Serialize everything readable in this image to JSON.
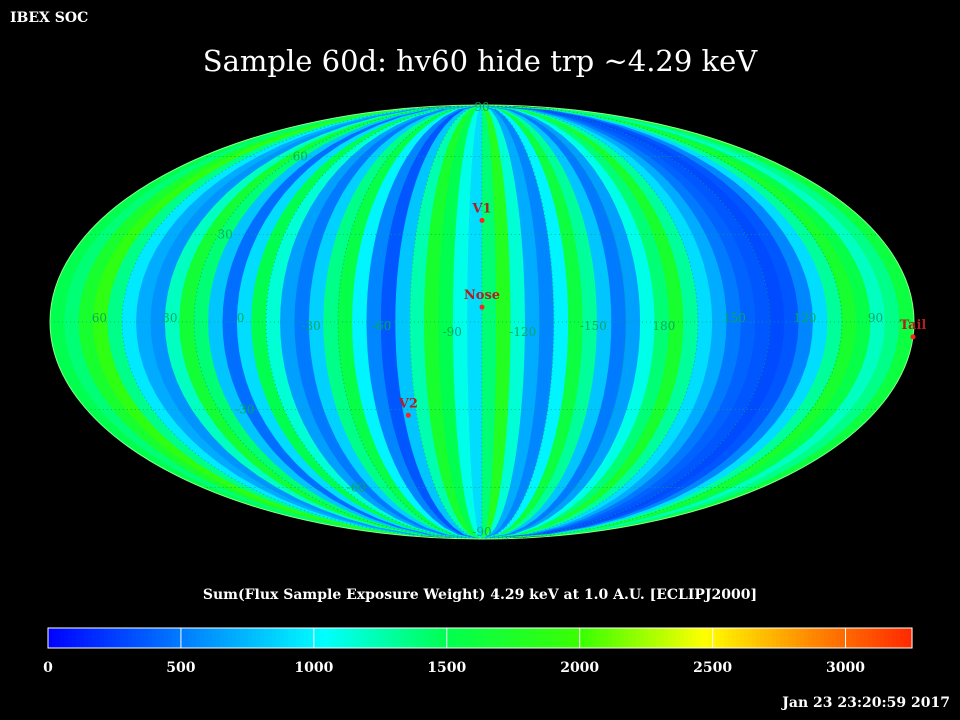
{
  "header": {
    "source_label": "IBEX SOC",
    "title": "Sample 60d: hv60 hide trp ~4.29 keV"
  },
  "chart_data": {
    "type": "heatmap",
    "projection": "mollweide",
    "title": "Sample 60d: hv60 hide trp ~4.29 keV",
    "colorbar_label": "Sum(Flux Sample Exposure Weight)  4.29 keV at 1.0 A.U. [ECLIPJ2000]",
    "colorbar_range": [
      0,
      3250
    ],
    "colorbar_ticks": [
      "0",
      "500",
      "1000",
      "1500",
      "2000",
      "2500",
      "3000"
    ],
    "grid": true,
    "longitude_labels": [
      "60",
      "30",
      "0",
      "-30",
      "-60",
      "-90",
      "-120",
      "-150",
      "180",
      "150",
      "120",
      "90"
    ],
    "latitude_labels": [
      "90",
      "60",
      "30",
      "-30",
      "-60",
      "-90"
    ],
    "markers": [
      {
        "name": "V1",
        "lon": 255,
        "lat": 35
      },
      {
        "name": "Nose",
        "lon": 255,
        "lat": 5
      },
      {
        "name": "V2",
        "lon": 289,
        "lat": -32
      },
      {
        "name": "Tail",
        "lon": 75,
        "lat": -5
      }
    ],
    "strip_values": [
      1500,
      1400,
      1700,
      1900,
      1350,
      950,
      700,
      600,
      1200,
      1650,
      1400,
      800,
      450,
      900,
      1500,
      1150,
      650,
      500,
      850,
      1350,
      1550,
      1000,
      550,
      350,
      800,
      1250,
      1700,
      1500,
      1100,
      900,
      1400,
      1800,
      1150,
      700,
      550,
      1000,
      1600,
      1300,
      800,
      500,
      650,
      1100,
      1400,
      1700,
      1300,
      900,
      700,
      500,
      400,
      350,
      300,
      350,
      550,
      900,
      1300,
      1700,
      1550,
      1200,
      1350,
      1600
    ]
  },
  "footer": {
    "timestamp": "Jan 23 23:20:59 2017"
  }
}
